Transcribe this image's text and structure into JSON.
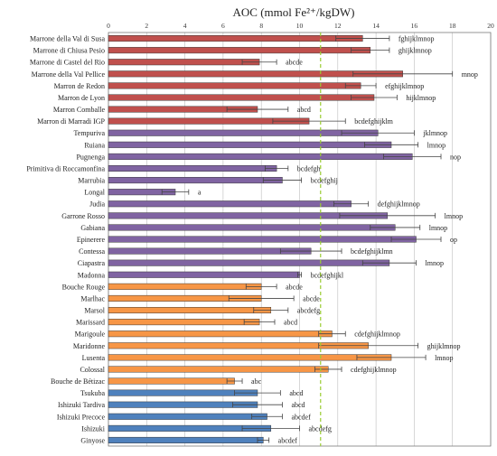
{
  "chart_data": {
    "type": "bar",
    "orientation": "horizontal",
    "title": "AOC (mmol Fe²⁺/kgDW)",
    "xlim": [
      0,
      20
    ],
    "x_ticks": [
      0,
      2,
      4,
      6,
      8,
      10,
      12,
      14,
      16,
      18,
      20
    ],
    "reference_line": 11.1,
    "grid": "vertical",
    "error_bars": true,
    "categories": [
      {
        "label": "Marrone della Val di Susa",
        "value": 13.3,
        "error": 1.4,
        "letters": "fghijklmnop",
        "group": "red"
      },
      {
        "label": "Marrone di Chiusa Pesio",
        "value": 13.7,
        "error": 1.0,
        "letters": "ghijklmnop",
        "group": "red"
      },
      {
        "label": "Marrone di Castel del Rio",
        "value": 7.9,
        "error": 0.9,
        "letters": "abcde",
        "group": "red"
      },
      {
        "label": "Marrone della Val Pellice",
        "value": 15.4,
        "error": 2.6,
        "letters": "mnop",
        "group": "red"
      },
      {
        "label": "Marron de Redon",
        "value": 13.2,
        "error": 0.8,
        "letters": "efghijklmnop",
        "group": "red"
      },
      {
        "label": "Marron de Lyon",
        "value": 13.9,
        "error": 1.2,
        "letters": "hijklmnop",
        "group": "red"
      },
      {
        "label": "Marron Comballe",
        "value": 7.8,
        "error": 1.6,
        "letters": "abcd",
        "group": "red"
      },
      {
        "label": "Marron di Marradi IGP",
        "value": 10.5,
        "error": 1.9,
        "letters": "bcdefghijklm",
        "group": "red"
      },
      {
        "label": "Tempuriva",
        "value": 14.1,
        "error": 1.9,
        "letters": "jklmnop",
        "group": "purple"
      },
      {
        "label": "Ruiana",
        "value": 14.8,
        "error": 1.4,
        "letters": "lmnop",
        "group": "purple"
      },
      {
        "label": "Pugnenga",
        "value": 15.9,
        "error": 1.5,
        "letters": "nop",
        "group": "purple"
      },
      {
        "label": "Primitiva di Roccamonfina",
        "value": 8.8,
        "error": 0.6,
        "letters": "bcdefgh",
        "group": "purple"
      },
      {
        "label": "Marrubia",
        "value": 9.1,
        "error": 1.0,
        "letters": "bcdefghij",
        "group": "purple"
      },
      {
        "label": "Longal",
        "value": 3.5,
        "error": 0.7,
        "letters": "a",
        "group": "purple"
      },
      {
        "label": "Judia",
        "value": 12.7,
        "error": 0.9,
        "letters": "defghijklmnop",
        "group": "purple"
      },
      {
        "label": "Garrone Rosso",
        "value": 14.6,
        "error": 2.5,
        "letters": "lmnop",
        "group": "purple"
      },
      {
        "label": "Gabiana",
        "value": 15.0,
        "error": 1.3,
        "letters": "lmnop",
        "group": "purple"
      },
      {
        "label": "Epinerere",
        "value": 16.1,
        "error": 1.3,
        "letters": "op",
        "group": "purple"
      },
      {
        "label": "Contessa",
        "value": 10.6,
        "error": 1.6,
        "letters": "bcdefghijklmn",
        "group": "purple"
      },
      {
        "label": "Ciapastra",
        "value": 14.7,
        "error": 1.4,
        "letters": "lmnop",
        "group": "purple"
      },
      {
        "label": "Madonna",
        "value": 10.0,
        "error": 0.1,
        "letters": "bcdefghijkl",
        "group": "purple"
      },
      {
        "label": "Bouche Rouge",
        "value": 8.0,
        "error": 0.8,
        "letters": "abcde",
        "group": "orange"
      },
      {
        "label": "Marlhac",
        "value": 8.0,
        "error": 1.7,
        "letters": "abcde",
        "group": "orange"
      },
      {
        "label": "Marsol",
        "value": 8.5,
        "error": 0.9,
        "letters": "abcdefg",
        "group": "orange"
      },
      {
        "label": "Marissard",
        "value": 7.9,
        "error": 0.8,
        "letters": "abcd",
        "group": "orange"
      },
      {
        "label": "Marigoule",
        "value": 11.7,
        "error": 0.7,
        "letters": "cdefghijklmnop",
        "group": "orange"
      },
      {
        "label": "Maridonne",
        "value": 13.6,
        "error": 2.6,
        "letters": "ghijklmnop",
        "group": "orange"
      },
      {
        "label": "Lusenta",
        "value": 14.8,
        "error": 1.8,
        "letters": "lmnop",
        "group": "orange"
      },
      {
        "label": "Colossal",
        "value": 11.5,
        "error": 0.7,
        "letters": "cdefghijklmnop",
        "group": "orange"
      },
      {
        "label": "Bouche de Bétizac",
        "value": 6.6,
        "error": 0.4,
        "letters": "abc",
        "group": "orange"
      },
      {
        "label": "Tsukuba",
        "value": 7.8,
        "error": 1.2,
        "letters": "abcd",
        "group": "blue"
      },
      {
        "label": "Ishizuki Tardiva",
        "value": 7.8,
        "error": 1.3,
        "letters": "abcd",
        "group": "blue"
      },
      {
        "label": "Ishizuki Precoce",
        "value": 8.3,
        "error": 0.8,
        "letters": "abcdef",
        "group": "blue"
      },
      {
        "label": "Ishizuki",
        "value": 8.5,
        "error": 1.5,
        "letters": "abcdefg",
        "group": "blue"
      },
      {
        "label": "Ginyose",
        "value": 8.1,
        "error": 0.3,
        "letters": "abcdef",
        "group": "blue"
      }
    ],
    "group_colors": {
      "red": "#c0504d",
      "purple": "#8064a2",
      "orange": "#f79646",
      "blue": "#4f81bd"
    },
    "reference_line_color": "#9acd32"
  }
}
